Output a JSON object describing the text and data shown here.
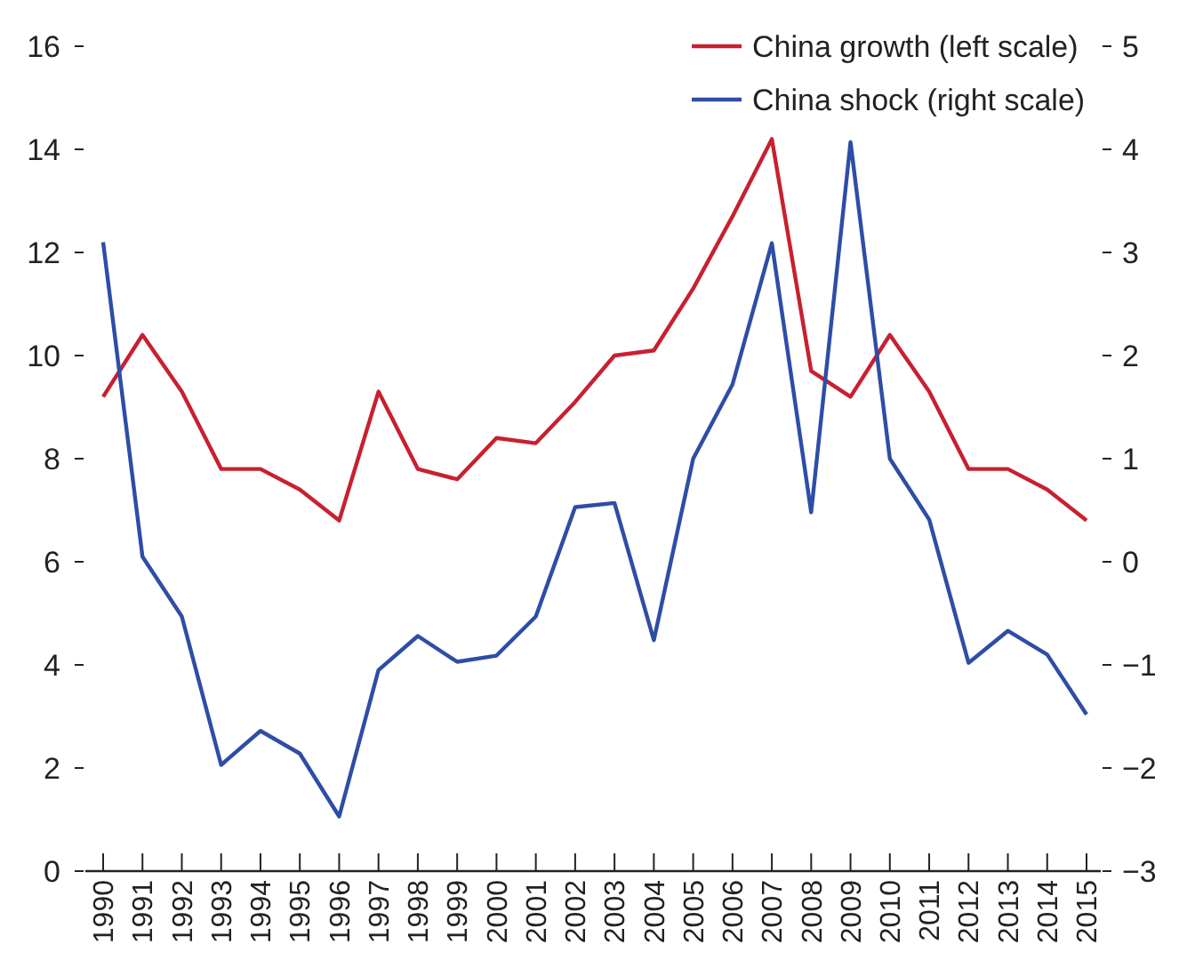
{
  "chart_data": {
    "type": "line",
    "categories": [
      "1990",
      "1991",
      "1992",
      "1993",
      "1994",
      "1995",
      "1996",
      "1997",
      "1998",
      "1999",
      "2000",
      "2001",
      "2002",
      "2003",
      "2004",
      "2005",
      "2006",
      "2007",
      "2008",
      "2009",
      "2010",
      "2011",
      "2012",
      "2013",
      "2014",
      "2015"
    ],
    "series": [
      {
        "name": "China growth (left scale)",
        "color": "#c8202f",
        "values": [
          9.2,
          10.4,
          9.3,
          7.8,
          7.8,
          7.4,
          6.8,
          9.3,
          7.8,
          7.6,
          8.4,
          8.3,
          9.1,
          10.0,
          10.1,
          11.3,
          12.7,
          14.2,
          9.7,
          9.2,
          10.4,
          9.3,
          7.8,
          7.8,
          7.4,
          6.8
        ]
      },
      {
        "name": "China shock (right scale)",
        "color": "#2e4da7",
        "axis": "y2",
        "values": [
          3.1,
          0.05,
          -0.53,
          -1.97,
          -1.64,
          -1.86,
          -2.47,
          -1.05,
          -0.72,
          -0.97,
          -0.91,
          -0.53,
          0.53,
          0.57,
          -0.76,
          1.0,
          1.72,
          3.09,
          0.48,
          4.07,
          1.0,
          0.41,
          -0.98,
          -0.67,
          -0.9,
          -1.48
        ]
      }
    ],
    "ylim": [
      0,
      16
    ],
    "yticks": [
      0,
      2,
      4,
      6,
      8,
      10,
      12,
      14,
      16
    ],
    "y2lim": [
      -3,
      5
    ],
    "y2ticks": [
      {
        "value": -3,
        "label": "−3"
      },
      {
        "value": -2,
        "label": "−2"
      },
      {
        "value": -1,
        "label": "−1"
      },
      0,
      1,
      2,
      3,
      4,
      5
    ],
    "legend": "top right",
    "grid": false,
    "marker": "none",
    "line_style": "solid"
  }
}
